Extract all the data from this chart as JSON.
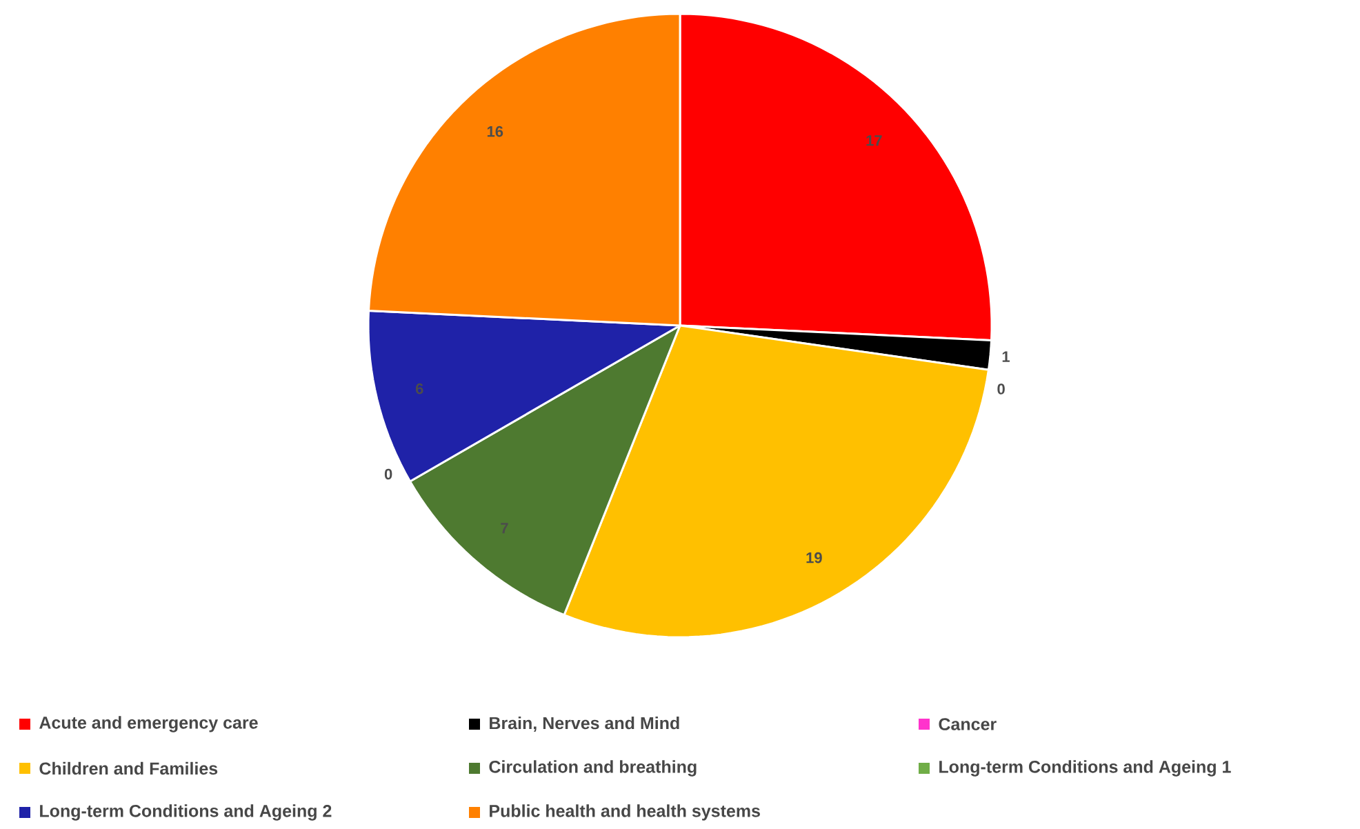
{
  "chart_data": {
    "type": "pie",
    "categories": [
      "Acute and emergency care",
      "Brain, Nerves and Mind",
      "Cancer",
      "Children and Families",
      "Circulation and breathing",
      "Long-term Conditions and Ageing 1",
      "Long-term Conditions and Ageing 2",
      "Public health and health systems"
    ],
    "values": [
      17,
      1,
      0,
      19,
      7,
      0,
      6,
      16
    ],
    "colors": [
      "#ff0000",
      "#000000",
      "#ff33cc",
      "#ffc000",
      "#4e7a30",
      "#70ad47",
      "#1f22a8",
      "#ff8000"
    ],
    "value_labels": [
      "17",
      "1",
      "0",
      "19",
      "7",
      "0",
      "6",
      "16"
    ],
    "legend": "bottom"
  }
}
